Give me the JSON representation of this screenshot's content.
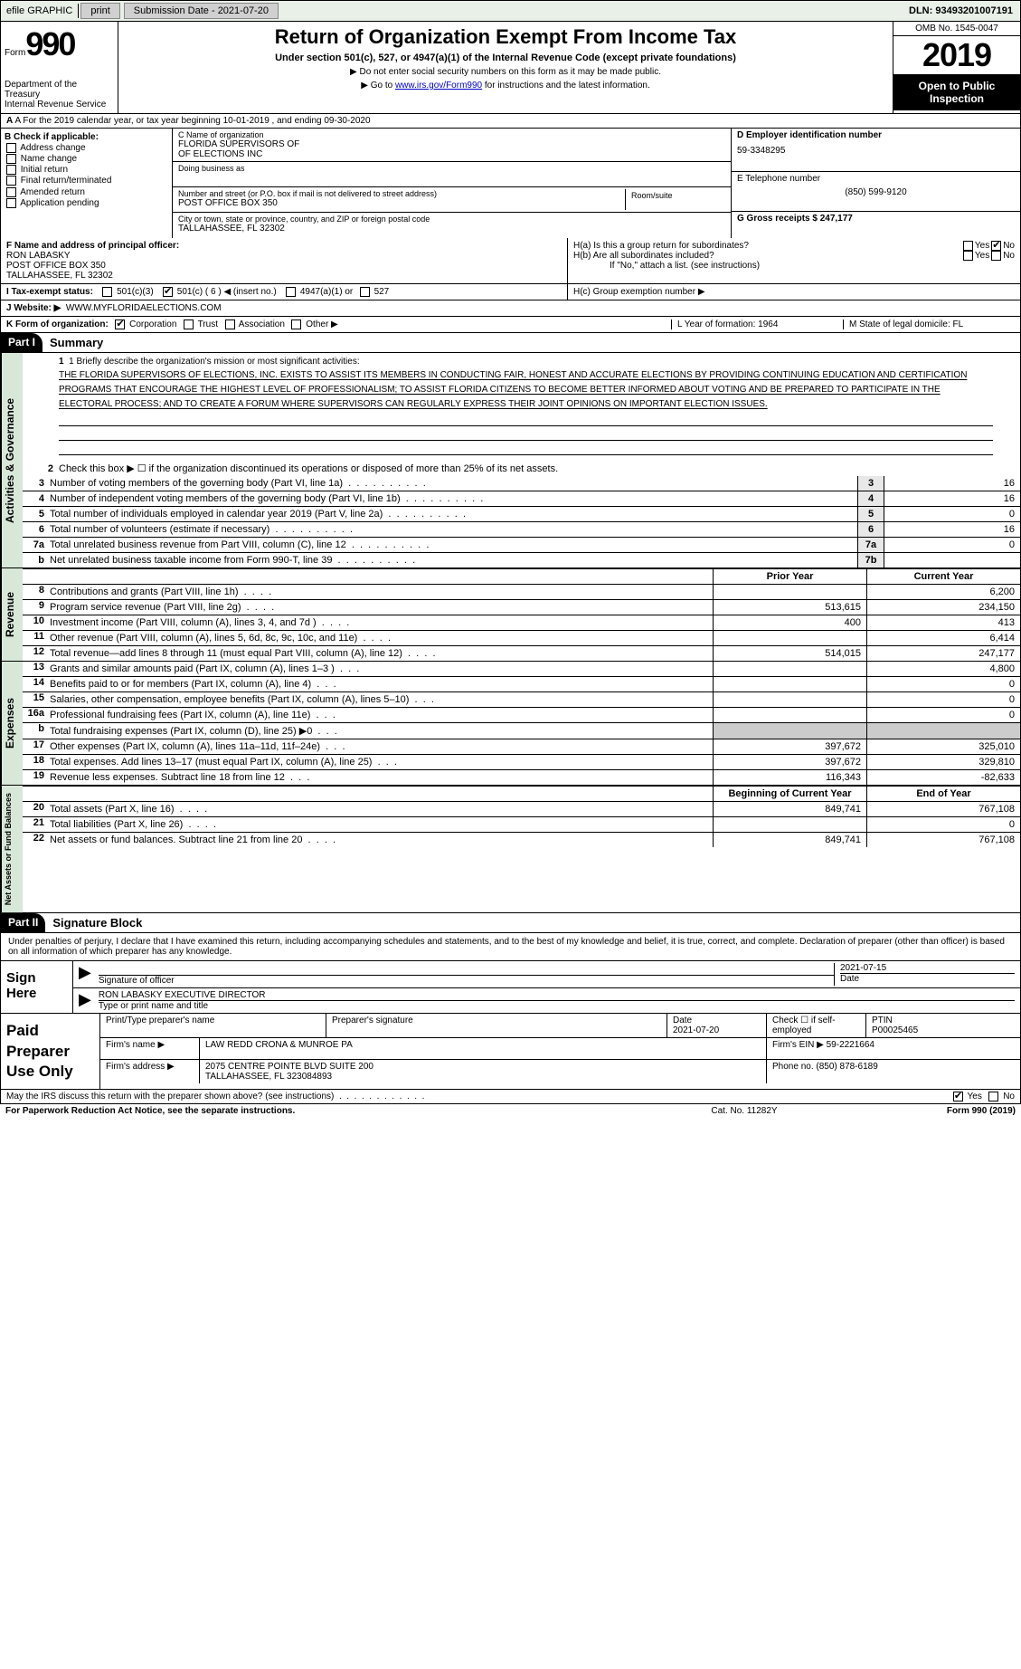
{
  "top": {
    "efile": "efile GRAPHIC",
    "print": "print",
    "sub_date_label": "Submission Date - 2021-07-20",
    "dln": "DLN: 93493201007191"
  },
  "header": {
    "form_word": "Form",
    "form_num": "990",
    "dept": "Department of the Treasury\nInternal Revenue Service",
    "title": "Return of Organization Exempt From Income Tax",
    "sub": "Under section 501(c), 527, or 4947(a)(1) of the Internal Revenue Code (except private foundations)",
    "arrow1": "▶ Do not enter social security numbers on this form as it may be made public.",
    "arrow2_pre": "▶ Go to ",
    "arrow2_link": "www.irs.gov/Form990",
    "arrow2_post": " for instructions and the latest information.",
    "omb": "OMB No. 1545-0047",
    "year": "2019",
    "open": "Open to Public Inspection"
  },
  "period": "A For the 2019 calendar year, or tax year beginning 10-01-2019    , and ending 09-30-2020",
  "box_b": {
    "hdr": "B Check if applicable:",
    "opts": [
      "Address change",
      "Name change",
      "Initial return",
      "Final return/terminated",
      "Amended return",
      "Application pending"
    ]
  },
  "box_c": {
    "name_lbl": "C Name of organization",
    "name": "FLORIDA SUPERVISORS OF\nOF ELECTIONS INC",
    "dba_lbl": "Doing business as",
    "dba": "",
    "street_lbl": "Number and street (or P.O. box if mail is not delivered to street address)",
    "street": "POST OFFICE BOX 350",
    "room_lbl": "Room/suite",
    "city_lbl": "City or town, state or province, country, and ZIP or foreign postal code",
    "city": "TALLAHASSEE, FL  32302"
  },
  "box_d": {
    "lbl": "D Employer identification number",
    "val": "59-3348295"
  },
  "box_e": {
    "lbl": "E Telephone number",
    "val": "(850) 599-9120"
  },
  "box_g": {
    "lbl": "G Gross receipts $ 247,177"
  },
  "box_f": {
    "lbl": "F  Name and address of principal officer:",
    "name": "RON LABASKY",
    "addr1": "POST OFFICE BOX 350",
    "addr2": "TALLAHASSEE, FL  32302"
  },
  "box_h": {
    "ha": "H(a)  Is this a group return for subordinates?",
    "hb": "H(b)  Are all subordinates included?",
    "hb2": "If \"No,\" attach a list. (see instructions)",
    "hc": "H(c)  Group exemption number ▶",
    "yes": "Yes",
    "no": "No"
  },
  "row_i": {
    "lbl": "I  Tax-exempt status:",
    "o1": "501(c)(3)",
    "o2": "501(c) ( 6 ) ◀ (insert no.)",
    "o3": "4947(a)(1) or",
    "o4": "527"
  },
  "row_j": {
    "lbl": "J  Website: ▶",
    "val": "WWW.MYFLORIDAELECTIONS.COM"
  },
  "row_k": {
    "lbl": "K Form of organization:",
    "o1": "Corporation",
    "o2": "Trust",
    "o3": "Association",
    "o4": "Other ▶"
  },
  "row_l": {
    "lbl": "L Year of formation: 1964"
  },
  "row_m": {
    "lbl": "M State of legal domicile: FL"
  },
  "part1": {
    "tab": "Part I",
    "title": "Summary"
  },
  "summary": {
    "line1_lbl": "1  Briefly describe the organization's mission or most significant activities:",
    "line1_txt": "THE FLORIDA SUPERVISORS OF ELECTIONS, INC. EXISTS TO ASSIST ITS MEMBERS IN CONDUCTING FAIR, HONEST AND ACCURATE ELECTIONS BY PROVIDING CONTINUING EDUCATION AND CERTIFICATION PROGRAMS THAT ENCOURAGE THE HIGHEST LEVEL OF PROFESSIONALISM; TO ASSIST FLORIDA CITIZENS TO BECOME BETTER INFORMED ABOUT VOTING AND BE PREPARED TO PARTICIPATE IN THE ELECTORAL PROCESS; AND TO CREATE A FORUM WHERE SUPERVISORS CAN REGULARLY EXPRESS THEIR JOINT OPINIONS ON IMPORTANT ELECTION ISSUES.",
    "line2": "Check this box ▶ ☐  if the organization discontinued its operations or disposed of more than 25% of its net assets.",
    "rows": [
      {
        "n": "3",
        "t": "Number of voting members of the governing body (Part VI, line 1a)",
        "box": "3",
        "v": "16"
      },
      {
        "n": "4",
        "t": "Number of independent voting members of the governing body (Part VI, line 1b)",
        "box": "4",
        "v": "16"
      },
      {
        "n": "5",
        "t": "Total number of individuals employed in calendar year 2019 (Part V, line 2a)",
        "box": "5",
        "v": "0"
      },
      {
        "n": "6",
        "t": "Total number of volunteers (estimate if necessary)",
        "box": "6",
        "v": "16"
      },
      {
        "n": "7a",
        "t": "Total unrelated business revenue from Part VIII, column (C), line 12",
        "box": "7a",
        "v": "0"
      },
      {
        "n": "b",
        "t": "Net unrelated business taxable income from Form 990-T, line 39",
        "box": "7b",
        "v": ""
      }
    ]
  },
  "vert": {
    "ag": "Activities & Governance",
    "rev": "Revenue",
    "exp": "Expenses",
    "na": "Net Assets or Fund Balances"
  },
  "cols": {
    "prior": "Prior Year",
    "curr": "Current Year",
    "beg": "Beginning of Current Year",
    "end": "End of Year"
  },
  "revenue": [
    {
      "n": "8",
      "t": "Contributions and grants (Part VIII, line 1h)",
      "p": "",
      "c": "6,200"
    },
    {
      "n": "9",
      "t": "Program service revenue (Part VIII, line 2g)",
      "p": "513,615",
      "c": "234,150"
    },
    {
      "n": "10",
      "t": "Investment income (Part VIII, column (A), lines 3, 4, and 7d )",
      "p": "400",
      "c": "413"
    },
    {
      "n": "11",
      "t": "Other revenue (Part VIII, column (A), lines 5, 6d, 8c, 9c, 10c, and 11e)",
      "p": "",
      "c": "6,414"
    },
    {
      "n": "12",
      "t": "Total revenue—add lines 8 through 11 (must equal Part VIII, column (A), line 12)",
      "p": "514,015",
      "c": "247,177"
    }
  ],
  "expenses": [
    {
      "n": "13",
      "t": "Grants and similar amounts paid (Part IX, column (A), lines 1–3 )",
      "p": "",
      "c": "4,800"
    },
    {
      "n": "14",
      "t": "Benefits paid to or for members (Part IX, column (A), line 4)",
      "p": "",
      "c": "0"
    },
    {
      "n": "15",
      "t": "Salaries, other compensation, employee benefits (Part IX, column (A), lines 5–10)",
      "p": "",
      "c": "0"
    },
    {
      "n": "16a",
      "t": "Professional fundraising fees (Part IX, column (A), line 11e)",
      "p": "",
      "c": "0"
    },
    {
      "n": "b",
      "t": "Total fundraising expenses (Part IX, column (D), line 25) ▶0",
      "p": "—",
      "c": "—"
    },
    {
      "n": "17",
      "t": "Other expenses (Part IX, column (A), lines 11a–11d, 11f–24e)",
      "p": "397,672",
      "c": "325,010"
    },
    {
      "n": "18",
      "t": "Total expenses. Add lines 13–17 (must equal Part IX, column (A), line 25)",
      "p": "397,672",
      "c": "329,810"
    },
    {
      "n": "19",
      "t": "Revenue less expenses. Subtract line 18 from line 12",
      "p": "116,343",
      "c": "-82,633"
    }
  ],
  "netassets": [
    {
      "n": "20",
      "t": "Total assets (Part X, line 16)",
      "p": "849,741",
      "c": "767,108"
    },
    {
      "n": "21",
      "t": "Total liabilities (Part X, line 26)",
      "p": "",
      "c": "0"
    },
    {
      "n": "22",
      "t": "Net assets or fund balances. Subtract line 21 from line 20",
      "p": "849,741",
      "c": "767,108"
    }
  ],
  "part2": {
    "tab": "Part II",
    "title": "Signature Block"
  },
  "sig": {
    "decl": "Under penalties of perjury, I declare that I have examined this return, including accompanying schedules and statements, and to the best of my knowledge and belief, it is true, correct, and complete. Declaration of preparer (other than officer) is based on all information of which preparer has any knowledge.",
    "sign_here": "Sign Here",
    "sig_lbl": "Signature of officer",
    "date": "2021-07-15",
    "date_lbl": "Date",
    "name": "RON LABASKY EXECUTIVE DIRECTOR",
    "name_lbl": "Type or print name and title"
  },
  "prep": {
    "hdr": "Paid Preparer Use Only",
    "print_lbl": "Print/Type preparer's name",
    "sig_lbl": "Preparer's signature",
    "date_lbl": "Date",
    "date": "2021-07-20",
    "chk_lbl": "Check ☐ if self-employed",
    "ptin_lbl": "PTIN",
    "ptin": "P00025465",
    "firm_name_lbl": "Firm's name    ▶",
    "firm_name": "LAW REDD CRONA & MUNROE PA",
    "firm_ein_lbl": "Firm's EIN ▶",
    "firm_ein": "59-2221664",
    "firm_addr_lbl": "Firm's address ▶",
    "firm_addr": "2075 CENTRE POINTE BLVD SUITE 200\nTALLAHASSEE, FL  323084893",
    "phone_lbl": "Phone no.",
    "phone": "(850) 878-6189"
  },
  "discuss": "May the IRS discuss this return with the preparer shown above? (see instructions)",
  "footer": {
    "pra": "For Paperwork Reduction Act Notice, see the separate instructions.",
    "cat": "Cat. No. 11282Y",
    "form": "Form 990 (2019)"
  },
  "colors": {
    "header_bg": "#e8f0e8",
    "vert_bg": "#d8e8d8",
    "black": "#000000"
  }
}
